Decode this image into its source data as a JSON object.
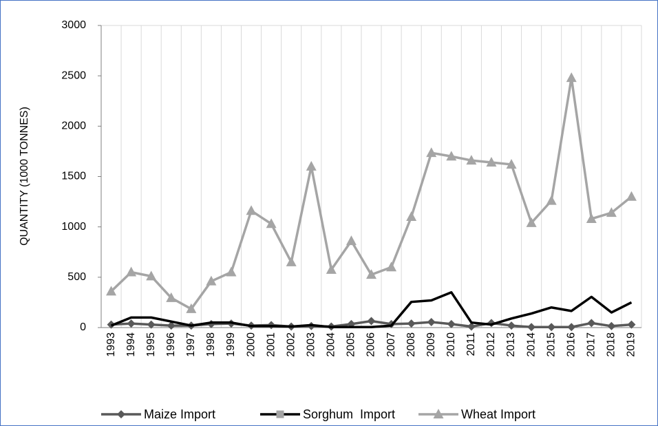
{
  "chart_data": {
    "type": "line",
    "y_label": "QUANTITY (1000 TONNES)",
    "categories": [
      "1993",
      "1994",
      "1995",
      "1996",
      "1997",
      "1998",
      "1999",
      "2000",
      "2001",
      "2002",
      "2003",
      "2004",
      "2005",
      "2006",
      "2007",
      "2008",
      "2009",
      "2010",
      "2011",
      "2012",
      "2013",
      "2014",
      "2015",
      "2016",
      "2017",
      "2018",
      "2019"
    ],
    "series": [
      {
        "name": "Maize Import",
        "color": "#595959",
        "marker": "diamond",
        "show_markers": true,
        "values": [
          30,
          40,
          30,
          20,
          20,
          35,
          40,
          20,
          25,
          10,
          15,
          10,
          35,
          65,
          35,
          40,
          55,
          35,
          10,
          45,
          20,
          5,
          5,
          5,
          45,
          15,
          30
        ]
      },
      {
        "name": "Sorghum  Import",
        "color": "#000000",
        "marker": "square",
        "marker_color": "#a5a5a5",
        "show_markers": false,
        "values": [
          20,
          100,
          100,
          60,
          20,
          50,
          50,
          15,
          15,
          10,
          25,
          5,
          5,
          5,
          20,
          255,
          270,
          350,
          50,
          30,
          90,
          140,
          200,
          165,
          305,
          150,
          250
        ]
      },
      {
        "name": "Wheat Import",
        "color": "#a5a5a5",
        "marker": "triangle",
        "show_markers": true,
        "values": [
          360,
          550,
          510,
          295,
          185,
          460,
          550,
          1160,
          1030,
          650,
          1600,
          575,
          860,
          525,
          600,
          1100,
          1735,
          1700,
          1660,
          1640,
          1620,
          1040,
          1260,
          2480,
          1080,
          1140,
          1300
        ]
      }
    ],
    "ylim": [
      0,
      3000
    ],
    "yticks": [
      0,
      500,
      1000,
      1500,
      2000,
      2500,
      3000
    ],
    "grid": "x",
    "legend": "bottom"
  }
}
